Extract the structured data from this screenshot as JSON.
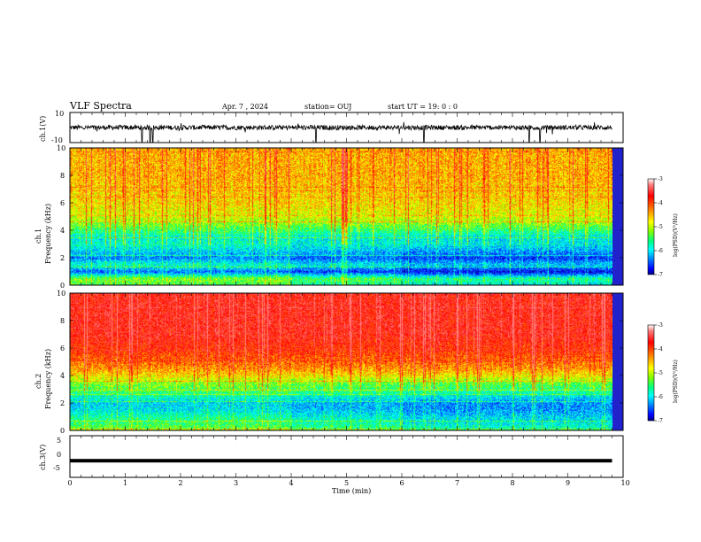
{
  "header": {
    "title": "VLF Spectra",
    "date": "Apr. 7 , 2024",
    "station": "station= OUJ",
    "start": "start UT =  19: 0  : 0"
  },
  "chart_data": [
    {
      "type": "line",
      "panel": "waveform-ch1",
      "ylabel": "ch.1(V)",
      "ylim": [
        -10,
        10
      ],
      "yticks": [
        "10",
        "-10"
      ],
      "x_range": [
        0,
        9.8
      ],
      "baseline": 0,
      "spike_times": [
        1.3,
        1.45,
        1.5,
        4.45,
        6.4,
        8.3,
        8.5
      ],
      "color": "#000000"
    },
    {
      "type": "heatmap",
      "panel": "spectrogram-ch1",
      "ylabel": "ch.1\nFrequency (kHz)",
      "ylim": [
        0,
        10
      ],
      "yticks": [
        "0",
        "2",
        "4",
        "6",
        "8",
        "10"
      ],
      "x_range": [
        0,
        9.8
      ],
      "colorbar": {
        "label": "log(PSD)(V²/Hz)",
        "range": [
          -7,
          -3
        ],
        "ticks": [
          "-3",
          "-4",
          "-5",
          "-6",
          "-7"
        ]
      },
      "band_profile": [
        {
          "f": 0.0,
          "v": -5.3
        },
        {
          "f": 0.5,
          "v": -5.0
        },
        {
          "f": 1.0,
          "v": -6.3
        },
        {
          "f": 1.5,
          "v": -5.6
        },
        {
          "f": 2.0,
          "v": -6.2
        },
        {
          "f": 2.5,
          "v": -5.9
        },
        {
          "f": 3.0,
          "v": -5.6
        },
        {
          "f": 3.5,
          "v": -5.7
        },
        {
          "f": 4.0,
          "v": -5.3
        },
        {
          "f": 4.5,
          "v": -5.0
        },
        {
          "f": 5.0,
          "v": -4.7
        },
        {
          "f": 6.0,
          "v": -4.5
        },
        {
          "f": 7.0,
          "v": -4.4
        },
        {
          "f": 8.0,
          "v": -4.3
        },
        {
          "f": 9.0,
          "v": -4.3
        },
        {
          "f": 10.0,
          "v": -4.3
        }
      ],
      "quiet_interval_min": [
        6.0,
        9.8
      ]
    },
    {
      "type": "heatmap",
      "panel": "spectrogram-ch2",
      "ylabel": "ch.2\nFrequency (kHz)",
      "ylim": [
        0,
        10
      ],
      "yticks": [
        "0",
        "2",
        "4",
        "6",
        "8",
        "10"
      ],
      "x_range": [
        0,
        9.8
      ],
      "colorbar": {
        "label": "log(PSD)(V²/Hz)",
        "range": [
          -7,
          -3
        ],
        "ticks": [
          "-3",
          "-4",
          "-5",
          "-6",
          "-7"
        ]
      },
      "band_profile": [
        {
          "f": 0.0,
          "v": -5.0
        },
        {
          "f": 0.5,
          "v": -5.3
        },
        {
          "f": 1.0,
          "v": -5.5
        },
        {
          "f": 1.5,
          "v": -5.8
        },
        {
          "f": 2.0,
          "v": -5.9
        },
        {
          "f": 2.5,
          "v": -5.6
        },
        {
          "f": 3.0,
          "v": -5.2
        },
        {
          "f": 3.5,
          "v": -5.0
        },
        {
          "f": 4.0,
          "v": -4.5
        },
        {
          "f": 4.5,
          "v": -4.2
        },
        {
          "f": 5.0,
          "v": -4.0
        },
        {
          "f": 6.0,
          "v": -3.7
        },
        {
          "f": 7.0,
          "v": -3.5
        },
        {
          "f": 8.0,
          "v": -3.5
        },
        {
          "f": 9.0,
          "v": -3.5
        },
        {
          "f": 10.0,
          "v": -3.5
        }
      ],
      "quiet_interval_min": [
        6.0,
        9.8
      ]
    },
    {
      "type": "line",
      "panel": "waveform-ch3",
      "ylabel": "ch.3(V)",
      "ylim": [
        -5,
        5
      ],
      "yticks": [
        "5",
        "0",
        "-5"
      ],
      "x_range": [
        0,
        9.8
      ],
      "baseline": -1,
      "color": "#000000"
    }
  ],
  "x_axis": {
    "label": "Time  (min)",
    "ticks": [
      "0",
      "1",
      "2",
      "3",
      "4",
      "5",
      "6",
      "7",
      "8",
      "9",
      "10"
    ],
    "range": [
      0,
      10
    ]
  }
}
